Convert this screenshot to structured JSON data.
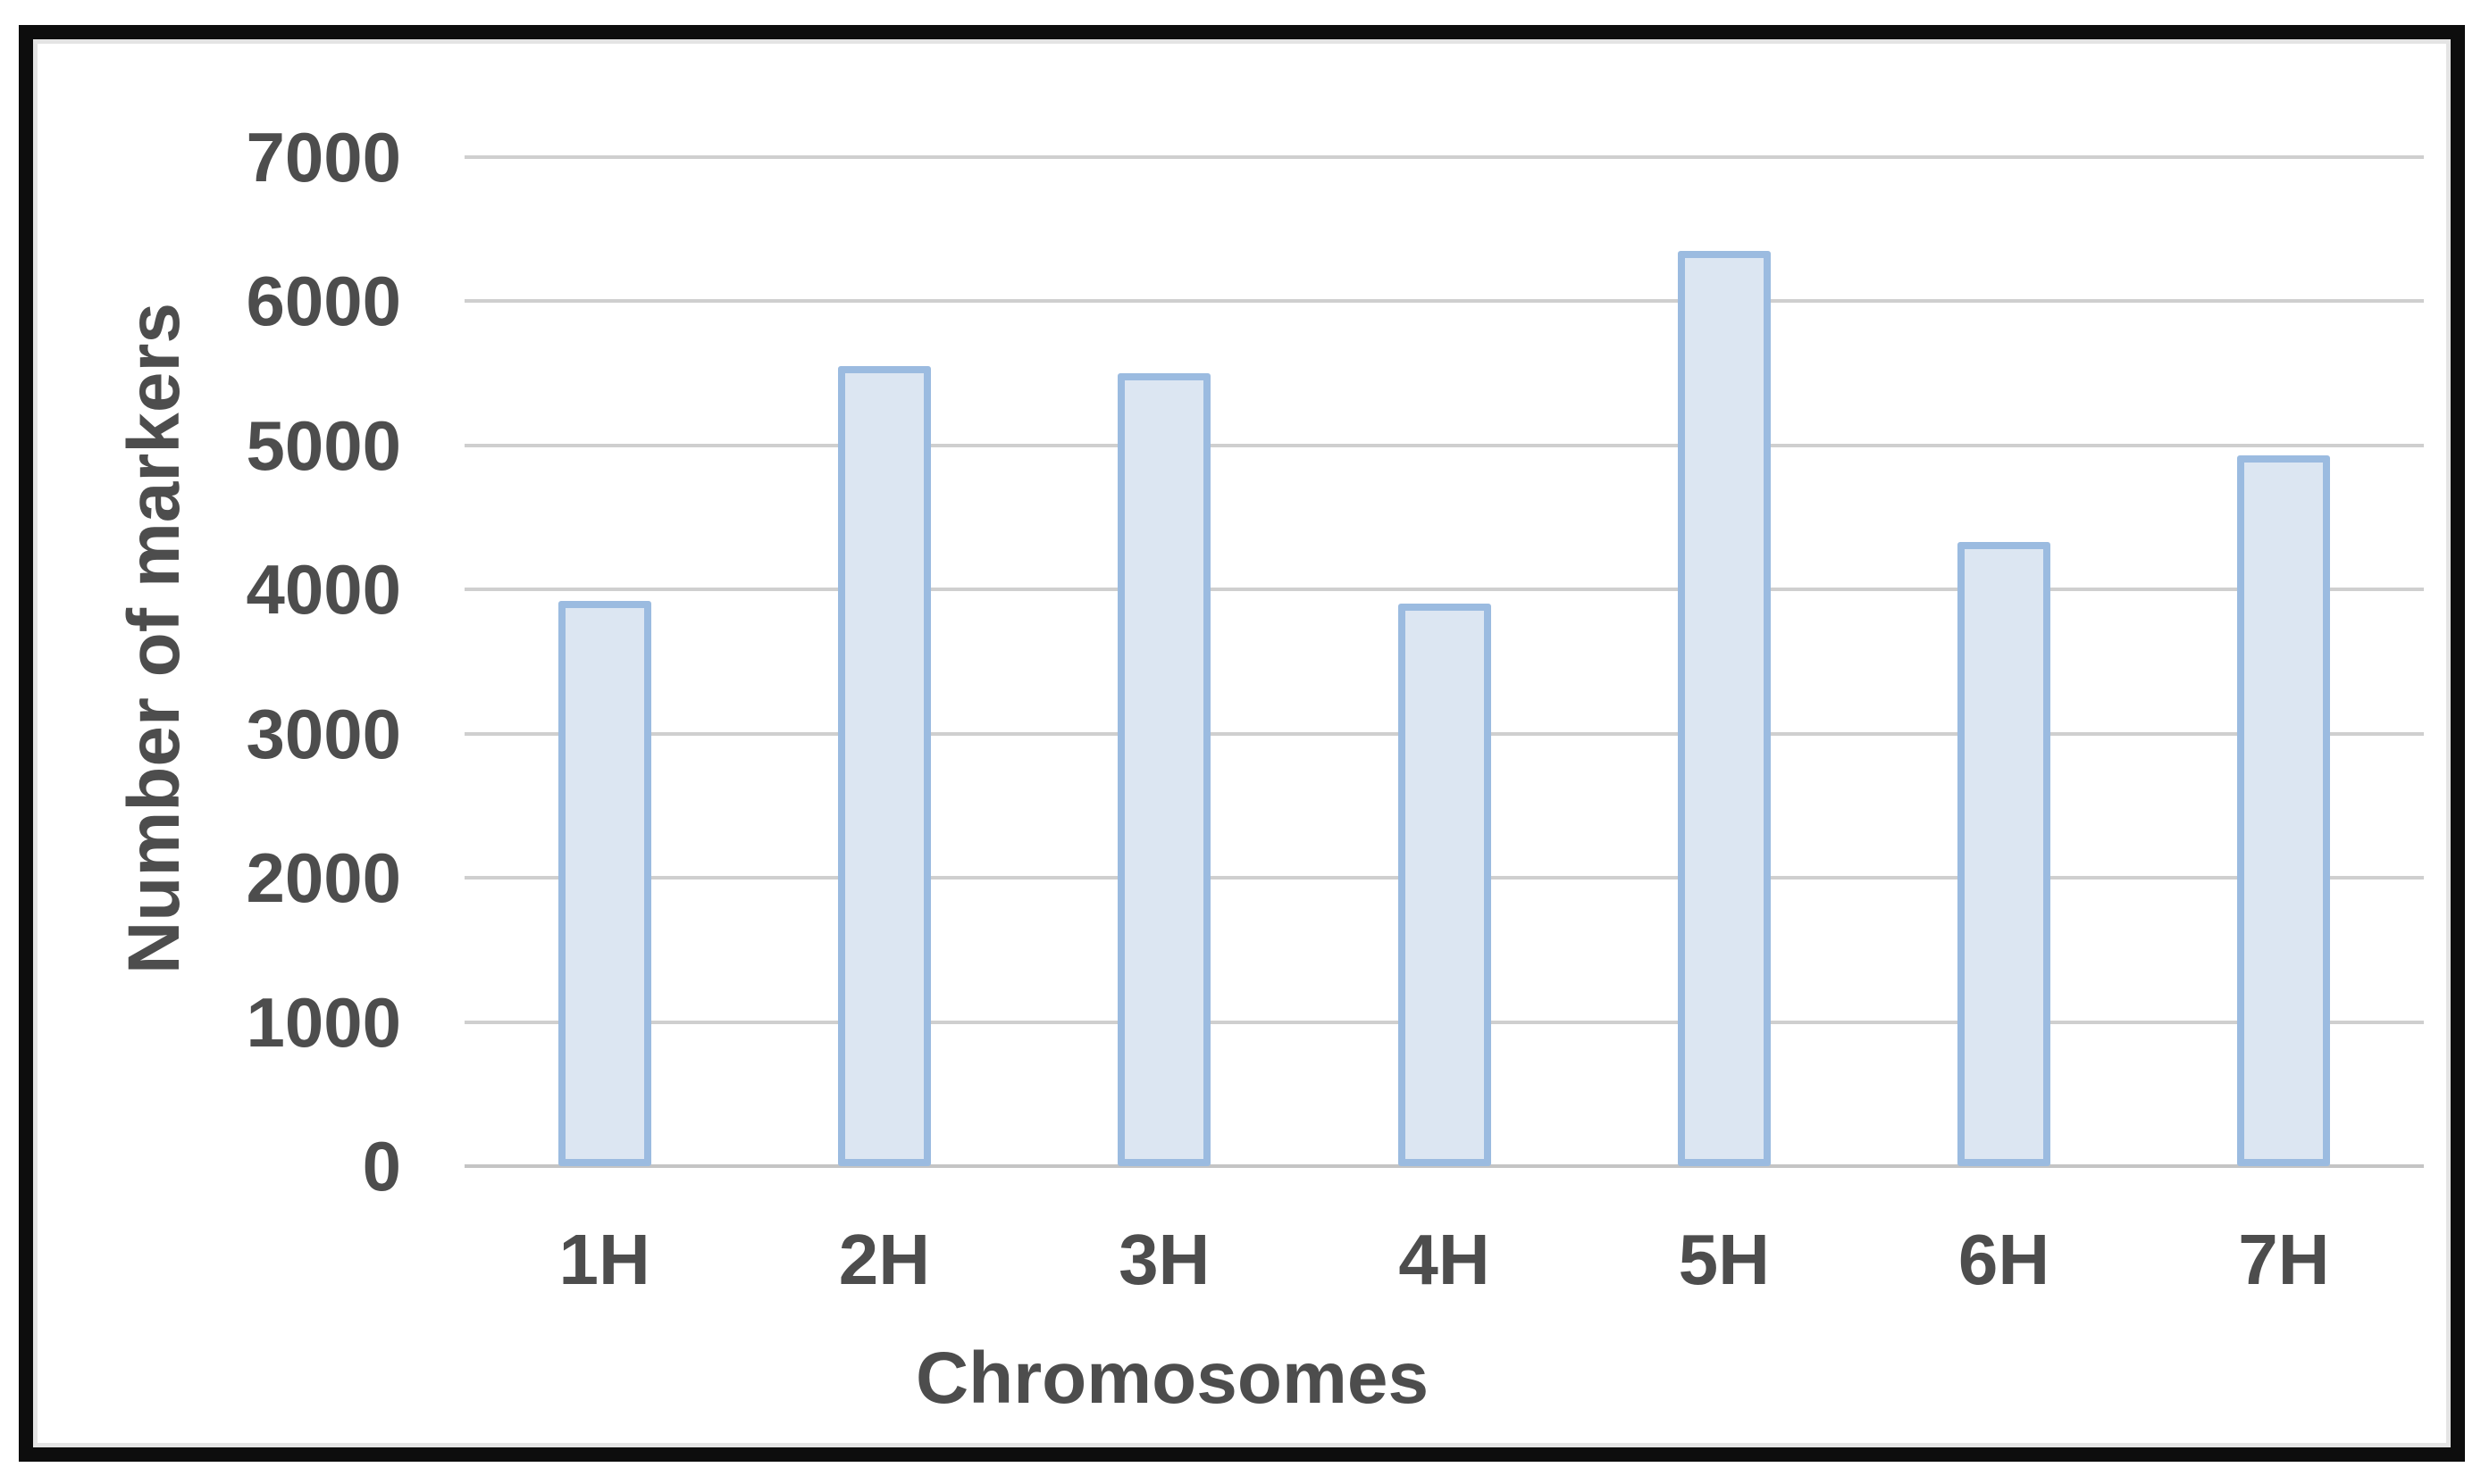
{
  "chart_data": {
    "type": "bar",
    "title": "",
    "xlabel": "Chromosomes",
    "ylabel": "Number of markers",
    "categories": [
      "1H",
      "2H",
      "3H",
      "4H",
      "5H",
      "6H",
      "7H"
    ],
    "values": [
      3920,
      5550,
      5500,
      3900,
      6350,
      4330,
      4930
    ],
    "ylim": [
      0,
      7000
    ],
    "ytick_step": 1000,
    "ytick_labels": [
      "0",
      "1000",
      "2000",
      "3000",
      "4000",
      "5000",
      "6000",
      "7000"
    ],
    "grid": "horizontal-gridlines",
    "legend_position": "none",
    "colors": {
      "bar_fill": "#dce6f2",
      "bar_border": "#9bbbe0",
      "gridline": "#cfcfcf",
      "axis_line": "#c4c4c4",
      "text": "#4d4d4d",
      "frame_border": "#0d0d0d",
      "background": "#ffffff"
    }
  }
}
